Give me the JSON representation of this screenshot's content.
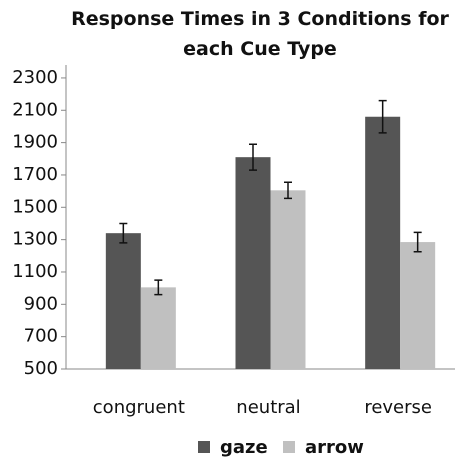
{
  "chart_data": {
    "type": "bar",
    "title": "Response Times in 3 Conditions for each Cue Type",
    "categories": [
      "congruent",
      "neutral",
      "reverse"
    ],
    "series": [
      {
        "name": "gaze",
        "color": "#555555",
        "values": [
          1340,
          1810,
          2060
        ],
        "errors": [
          60,
          80,
          100
        ]
      },
      {
        "name": "arrow",
        "color": "#c0c0c0",
        "values": [
          1005,
          1605,
          1285
        ],
        "errors": [
          45,
          50,
          60
        ]
      }
    ],
    "ylim": [
      500,
      2380
    ],
    "yticks": [
      500,
      700,
      900,
      1100,
      1300,
      1500,
      1700,
      1900,
      2100,
      2300
    ],
    "legend": "bottom"
  }
}
